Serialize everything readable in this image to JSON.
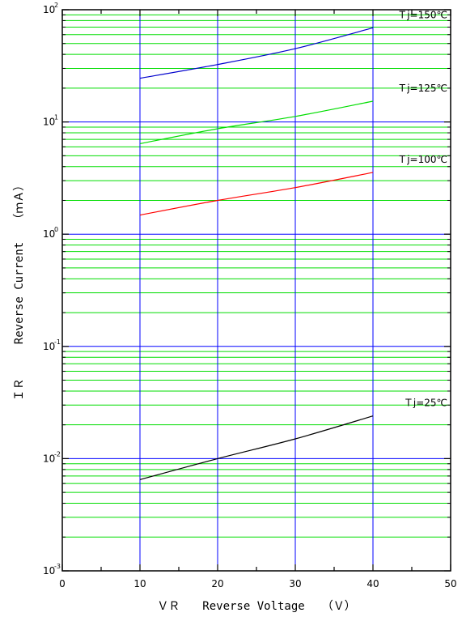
{
  "chart_data": {
    "type": "line",
    "xlabel": "ＶＲ　　Reverse Voltage　　（Ｖ）",
    "ylabel": "ＩＲ　　　Reverse Current　　（ｍＡ）",
    "xlim": [
      0,
      50
    ],
    "ylim": [
      0.001,
      100
    ],
    "yscale": "log",
    "x_ticks": [
      0,
      10,
      20,
      30,
      40,
      50
    ],
    "y_ticks": [
      {
        "base": "10",
        "exp": "-3",
        "value": 0.001
      },
      {
        "base": "10",
        "exp": "-2",
        "value": 0.01
      },
      {
        "base": "10",
        "exp": "-1",
        "value": 0.1
      },
      {
        "base": "10",
        "exp": "0",
        "value": 1
      },
      {
        "base": "10",
        "exp": "1",
        "value": 10
      },
      {
        "base": "10",
        "exp": "2",
        "value": 100
      }
    ],
    "grid": true,
    "colors": {
      "major_grid": "#0000ff",
      "minor_grid": "#00dd00",
      "axis": "#000000"
    },
    "series": [
      {
        "name": "Ｔj=150℃",
        "color": "#0000cc",
        "x": [
          10,
          20,
          30,
          40
        ],
        "y": [
          24.5,
          32.5,
          45,
          69
        ]
      },
      {
        "name": "Ｔj=125℃",
        "color": "#00dd00",
        "x": [
          10,
          20,
          30,
          40
        ],
        "y": [
          6.4,
          8.7,
          11.2,
          15.3
        ]
      },
      {
        "name": "Ｔj=100℃",
        "color": "#ff0000",
        "x": [
          10,
          20,
          30,
          40
        ],
        "y": [
          1.48,
          2.0,
          2.6,
          3.55
        ]
      },
      {
        "name": "Ｔj=25℃",
        "color": "#000000",
        "x": [
          10,
          20,
          30,
          40
        ],
        "y": [
          0.0065,
          0.01,
          0.015,
          0.024
        ]
      }
    ]
  }
}
